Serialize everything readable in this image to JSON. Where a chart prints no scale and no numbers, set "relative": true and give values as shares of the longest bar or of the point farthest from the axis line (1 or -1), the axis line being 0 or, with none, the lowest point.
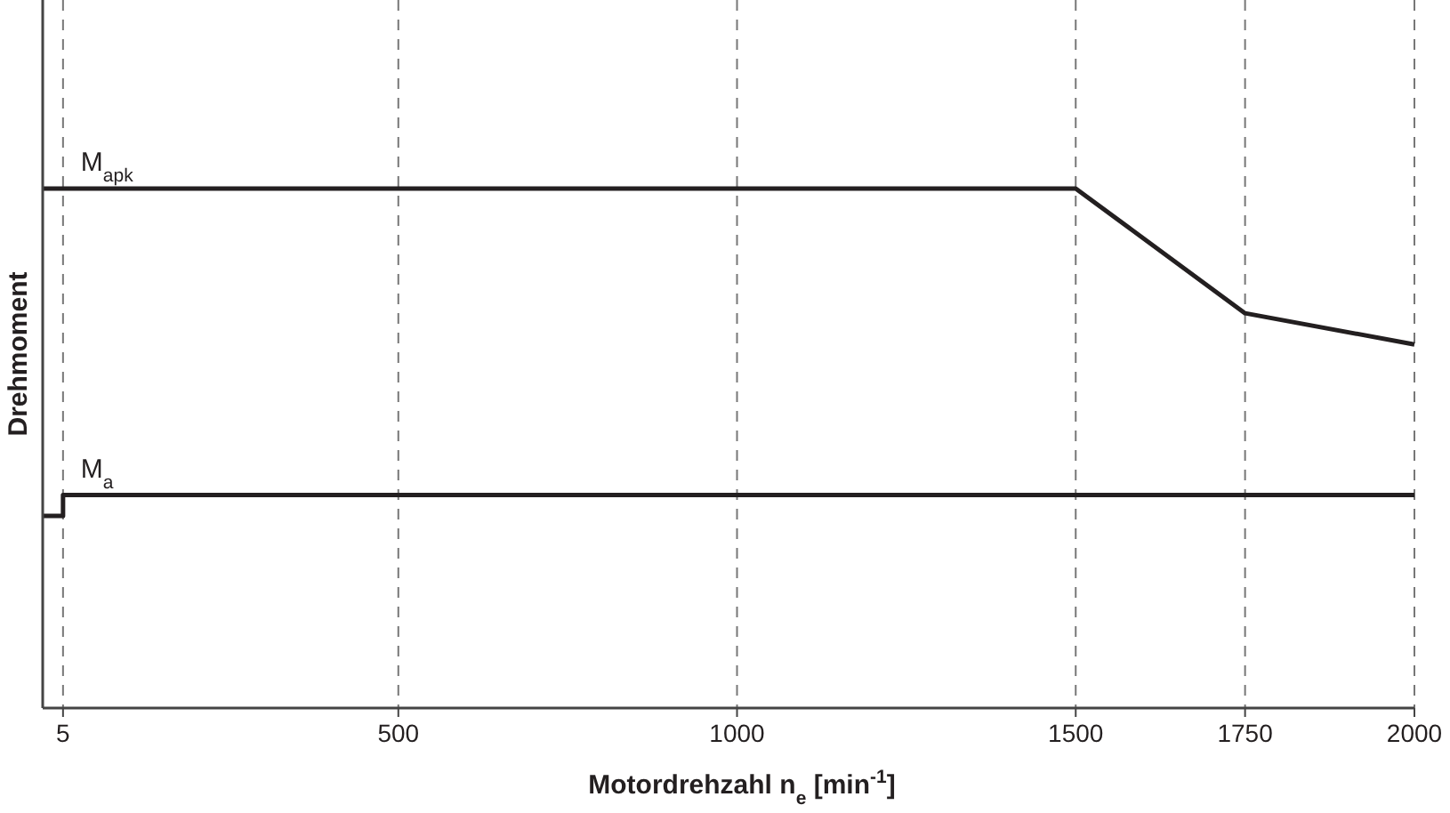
{
  "chart_data": {
    "type": "line",
    "relative": true,
    "xlabel": "Motordrehzahl n$_{e}$ [min$^{-1}$]",
    "ylabel": "Drehmoment",
    "xlim": [
      -25,
      2000
    ],
    "xticks": [
      5,
      500,
      1000,
      1500,
      1750,
      2000
    ],
    "grid": "x",
    "marker": "none",
    "line_style": "solid",
    "series": [
      {
        "name": "M$_{apk}$",
        "color": "#231f20",
        "x": [
          -25,
          1500,
          1750,
          2000
        ],
        "values": [
          1,
          1,
          0.76,
          0.7
        ]
      },
      {
        "name": "M$_{a}$",
        "color": "#231f20",
        "x": [
          -25,
          5,
          5,
          2000
        ],
        "values": [
          0.37,
          0.37,
          0.41,
          0.41
        ]
      }
    ]
  }
}
